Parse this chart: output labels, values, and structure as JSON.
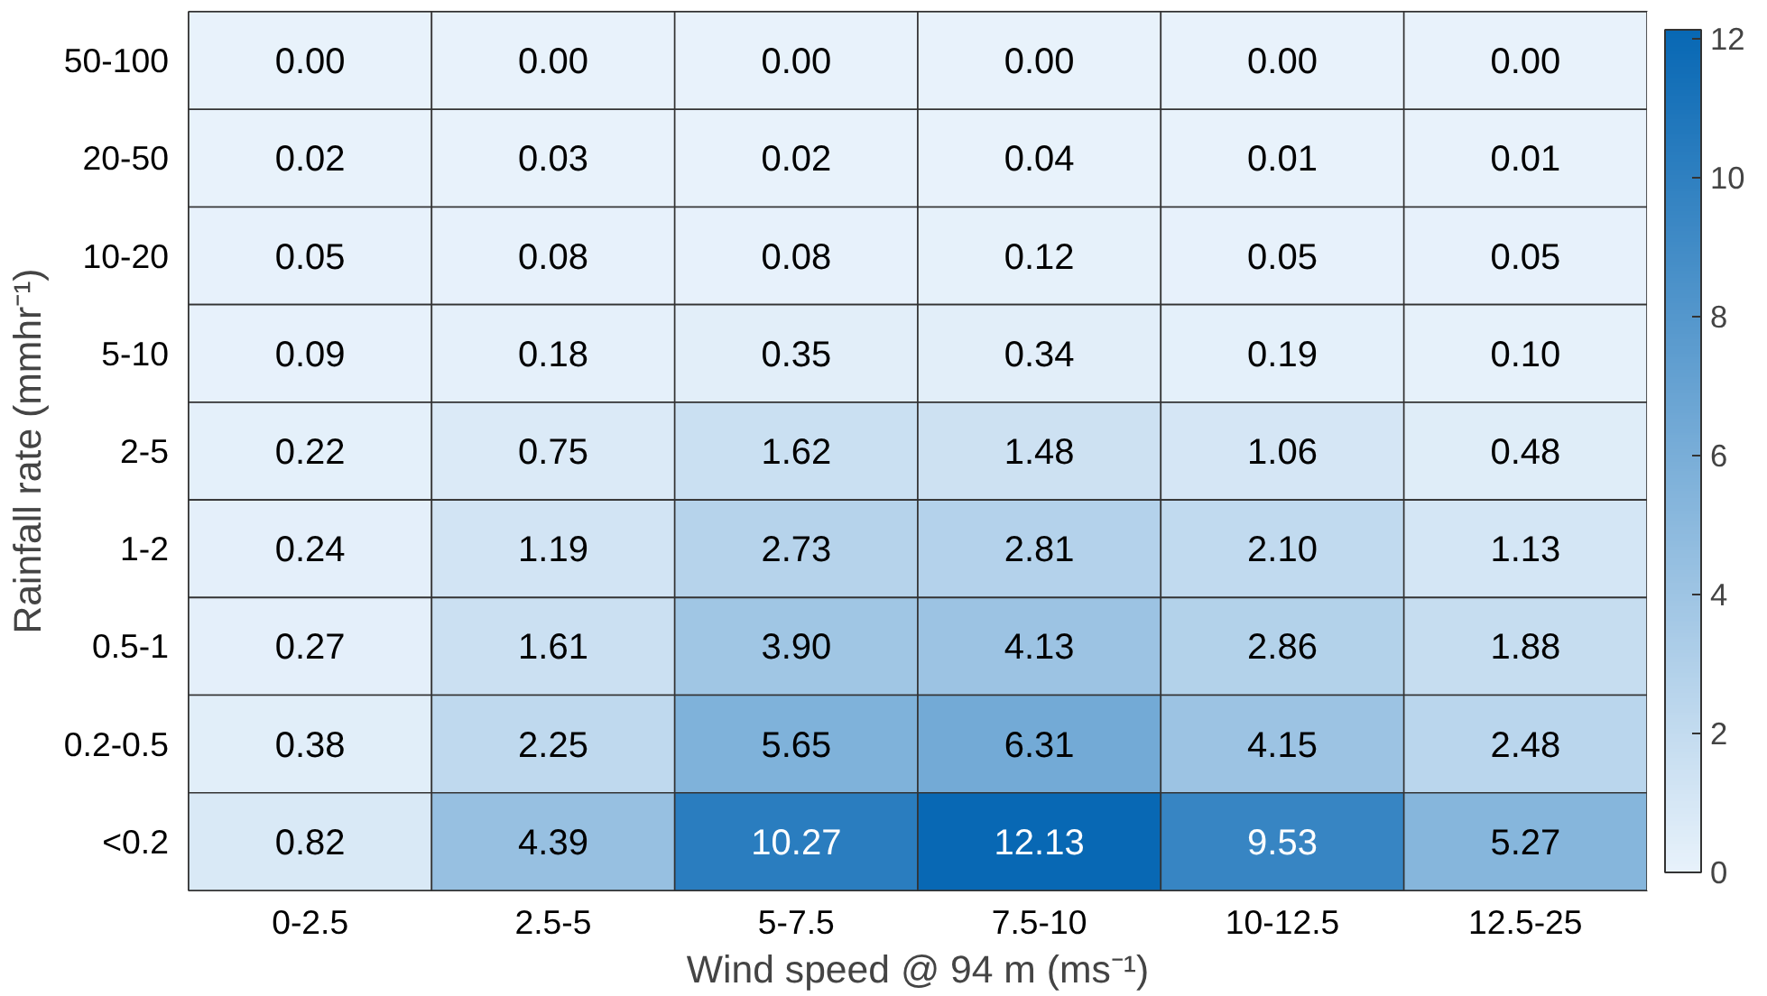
{
  "chart_data": {
    "type": "heatmap",
    "xlabel": "Wind speed @ 94 m (ms⁻¹)",
    "ylabel": "Rainfall rate (mmhr⁻¹)",
    "categories": [
      "0-2.5",
      "2.5-5",
      "5-7.5",
      "7.5-10",
      "10-12.5",
      "12.5-25"
    ],
    "y_categories": [
      "50-100",
      "20-50",
      "10-20",
      "5-10",
      "2-5",
      "1-2",
      "0.5-1",
      "0.2-0.5",
      "<0.2"
    ],
    "cells": [
      [
        0.0,
        0.0,
        0.0,
        0.0,
        0.0,
        0.0
      ],
      [
        0.02,
        0.03,
        0.02,
        0.04,
        0.01,
        0.01
      ],
      [
        0.05,
        0.08,
        0.08,
        0.12,
        0.05,
        0.05
      ],
      [
        0.09,
        0.18,
        0.35,
        0.34,
        0.19,
        0.1
      ],
      [
        0.22,
        0.75,
        1.62,
        1.48,
        1.06,
        0.48
      ],
      [
        0.24,
        1.19,
        2.73,
        2.81,
        2.1,
        1.13
      ],
      [
        0.27,
        1.61,
        3.9,
        4.13,
        2.86,
        1.88
      ],
      [
        0.38,
        2.25,
        5.65,
        6.31,
        4.15,
        2.48
      ],
      [
        0.82,
        4.39,
        10.27,
        12.13,
        9.53,
        5.27
      ]
    ],
    "cell_labels": [
      [
        "0.00",
        "0.00",
        "0.00",
        "0.00",
        "0.00",
        "0.00"
      ],
      [
        "0.02",
        "0.03",
        "0.02",
        "0.04",
        "0.01",
        "0.01"
      ],
      [
        "0.05",
        "0.08",
        "0.08",
        "0.12",
        "0.05",
        "0.05"
      ],
      [
        "0.09",
        "0.18",
        "0.35",
        "0.34",
        "0.19",
        "0.10"
      ],
      [
        "0.22",
        "0.75",
        "1.62",
        "1.48",
        "1.06",
        "0.48"
      ],
      [
        "0.24",
        "1.19",
        "2.73",
        "2.81",
        "2.10",
        "1.13"
      ],
      [
        "0.27",
        "1.61",
        "3.90",
        "4.13",
        "2.86",
        "1.88"
      ],
      [
        "0.38",
        "2.25",
        "5.65",
        "6.31",
        "4.15",
        "2.48"
      ],
      [
        "0.82",
        "4.39",
        "10.27",
        "12.13",
        "9.53",
        "5.27"
      ]
    ],
    "clim": [
      0,
      12.13
    ],
    "cticks": [
      0,
      2,
      4,
      6,
      8,
      10,
      12
    ]
  }
}
